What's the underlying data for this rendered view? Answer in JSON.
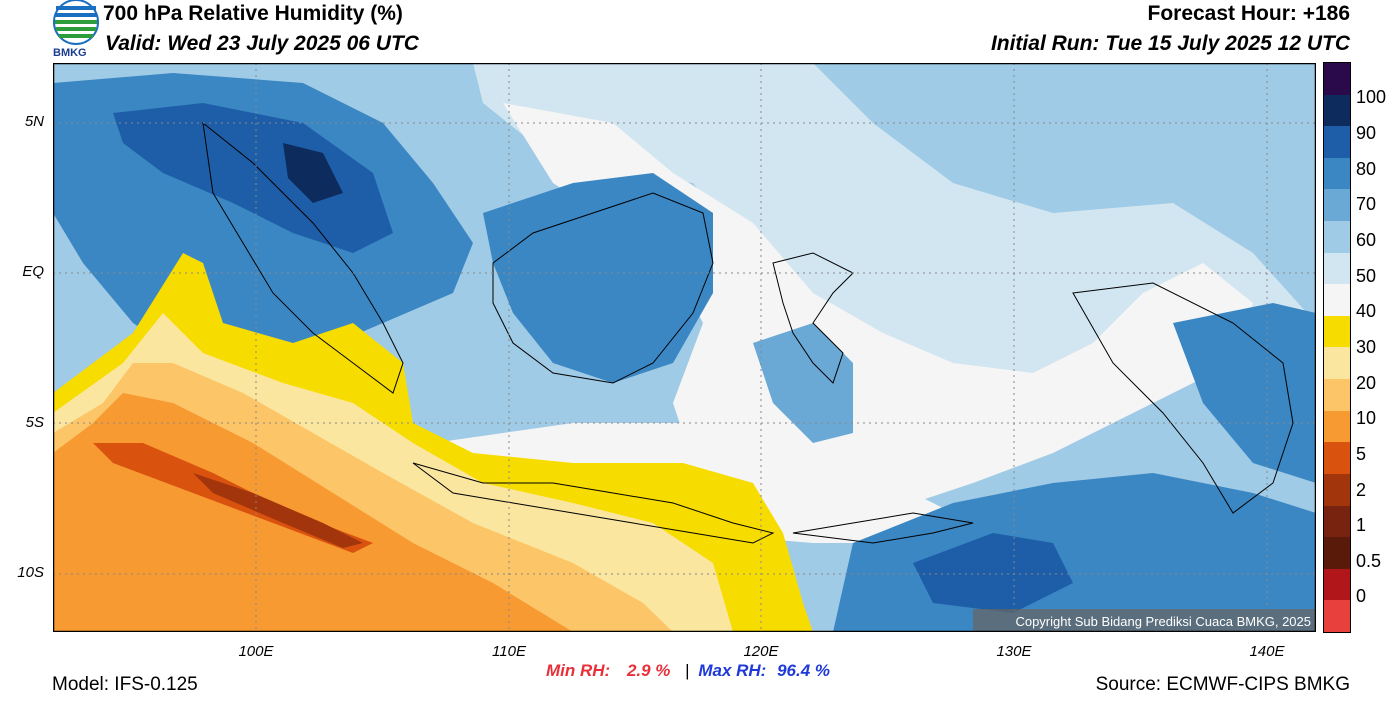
{
  "header": {
    "title": "700 hPa Relative Humidity (%)",
    "valid": "Valid: Wed 23 July 2025 06 UTC",
    "forecast_hour": "Forecast Hour: +186",
    "initial_run": "Initial Run: Tue 15 July 2025 12 UTC",
    "logo_text": "BMKG"
  },
  "map": {
    "lat_labels": [
      "5N",
      "EQ",
      "5S",
      "10S"
    ],
    "lon_labels": [
      "100E",
      "110E",
      "120E",
      "130E",
      "140E"
    ],
    "copyright": "Copyright Sub Bidang Prediksi Cuaca BMKG, 2025"
  },
  "colorbar": {
    "labels": [
      "100",
      "90",
      "80",
      "70",
      "60",
      "50",
      "40",
      "30",
      "20",
      "10",
      "5",
      "2",
      "1",
      "0.5",
      "0"
    ],
    "colors": [
      "#2a0a4a",
      "#0d2b5c",
      "#1e5ea8",
      "#3a87c4",
      "#6aa9d5",
      "#9fcbe6",
      "#d2e6f2",
      "#f5f5f5",
      "#f7dc00",
      "#fbe6a0",
      "#fcc568",
      "#f89a32",
      "#d9530f",
      "#a3350d",
      "#78230f",
      "#5a1a0a",
      "#b0161a",
      "#e8403c"
    ]
  },
  "stats": {
    "min_label": "Min RH:",
    "min_value": "2.9 %",
    "separator": "|",
    "max_label": "Max RH:",
    "max_value": "96.4 %"
  },
  "footer": {
    "model": "Model: IFS-0.125",
    "source": "Source: ECMWF-CIPS BMKG"
  }
}
